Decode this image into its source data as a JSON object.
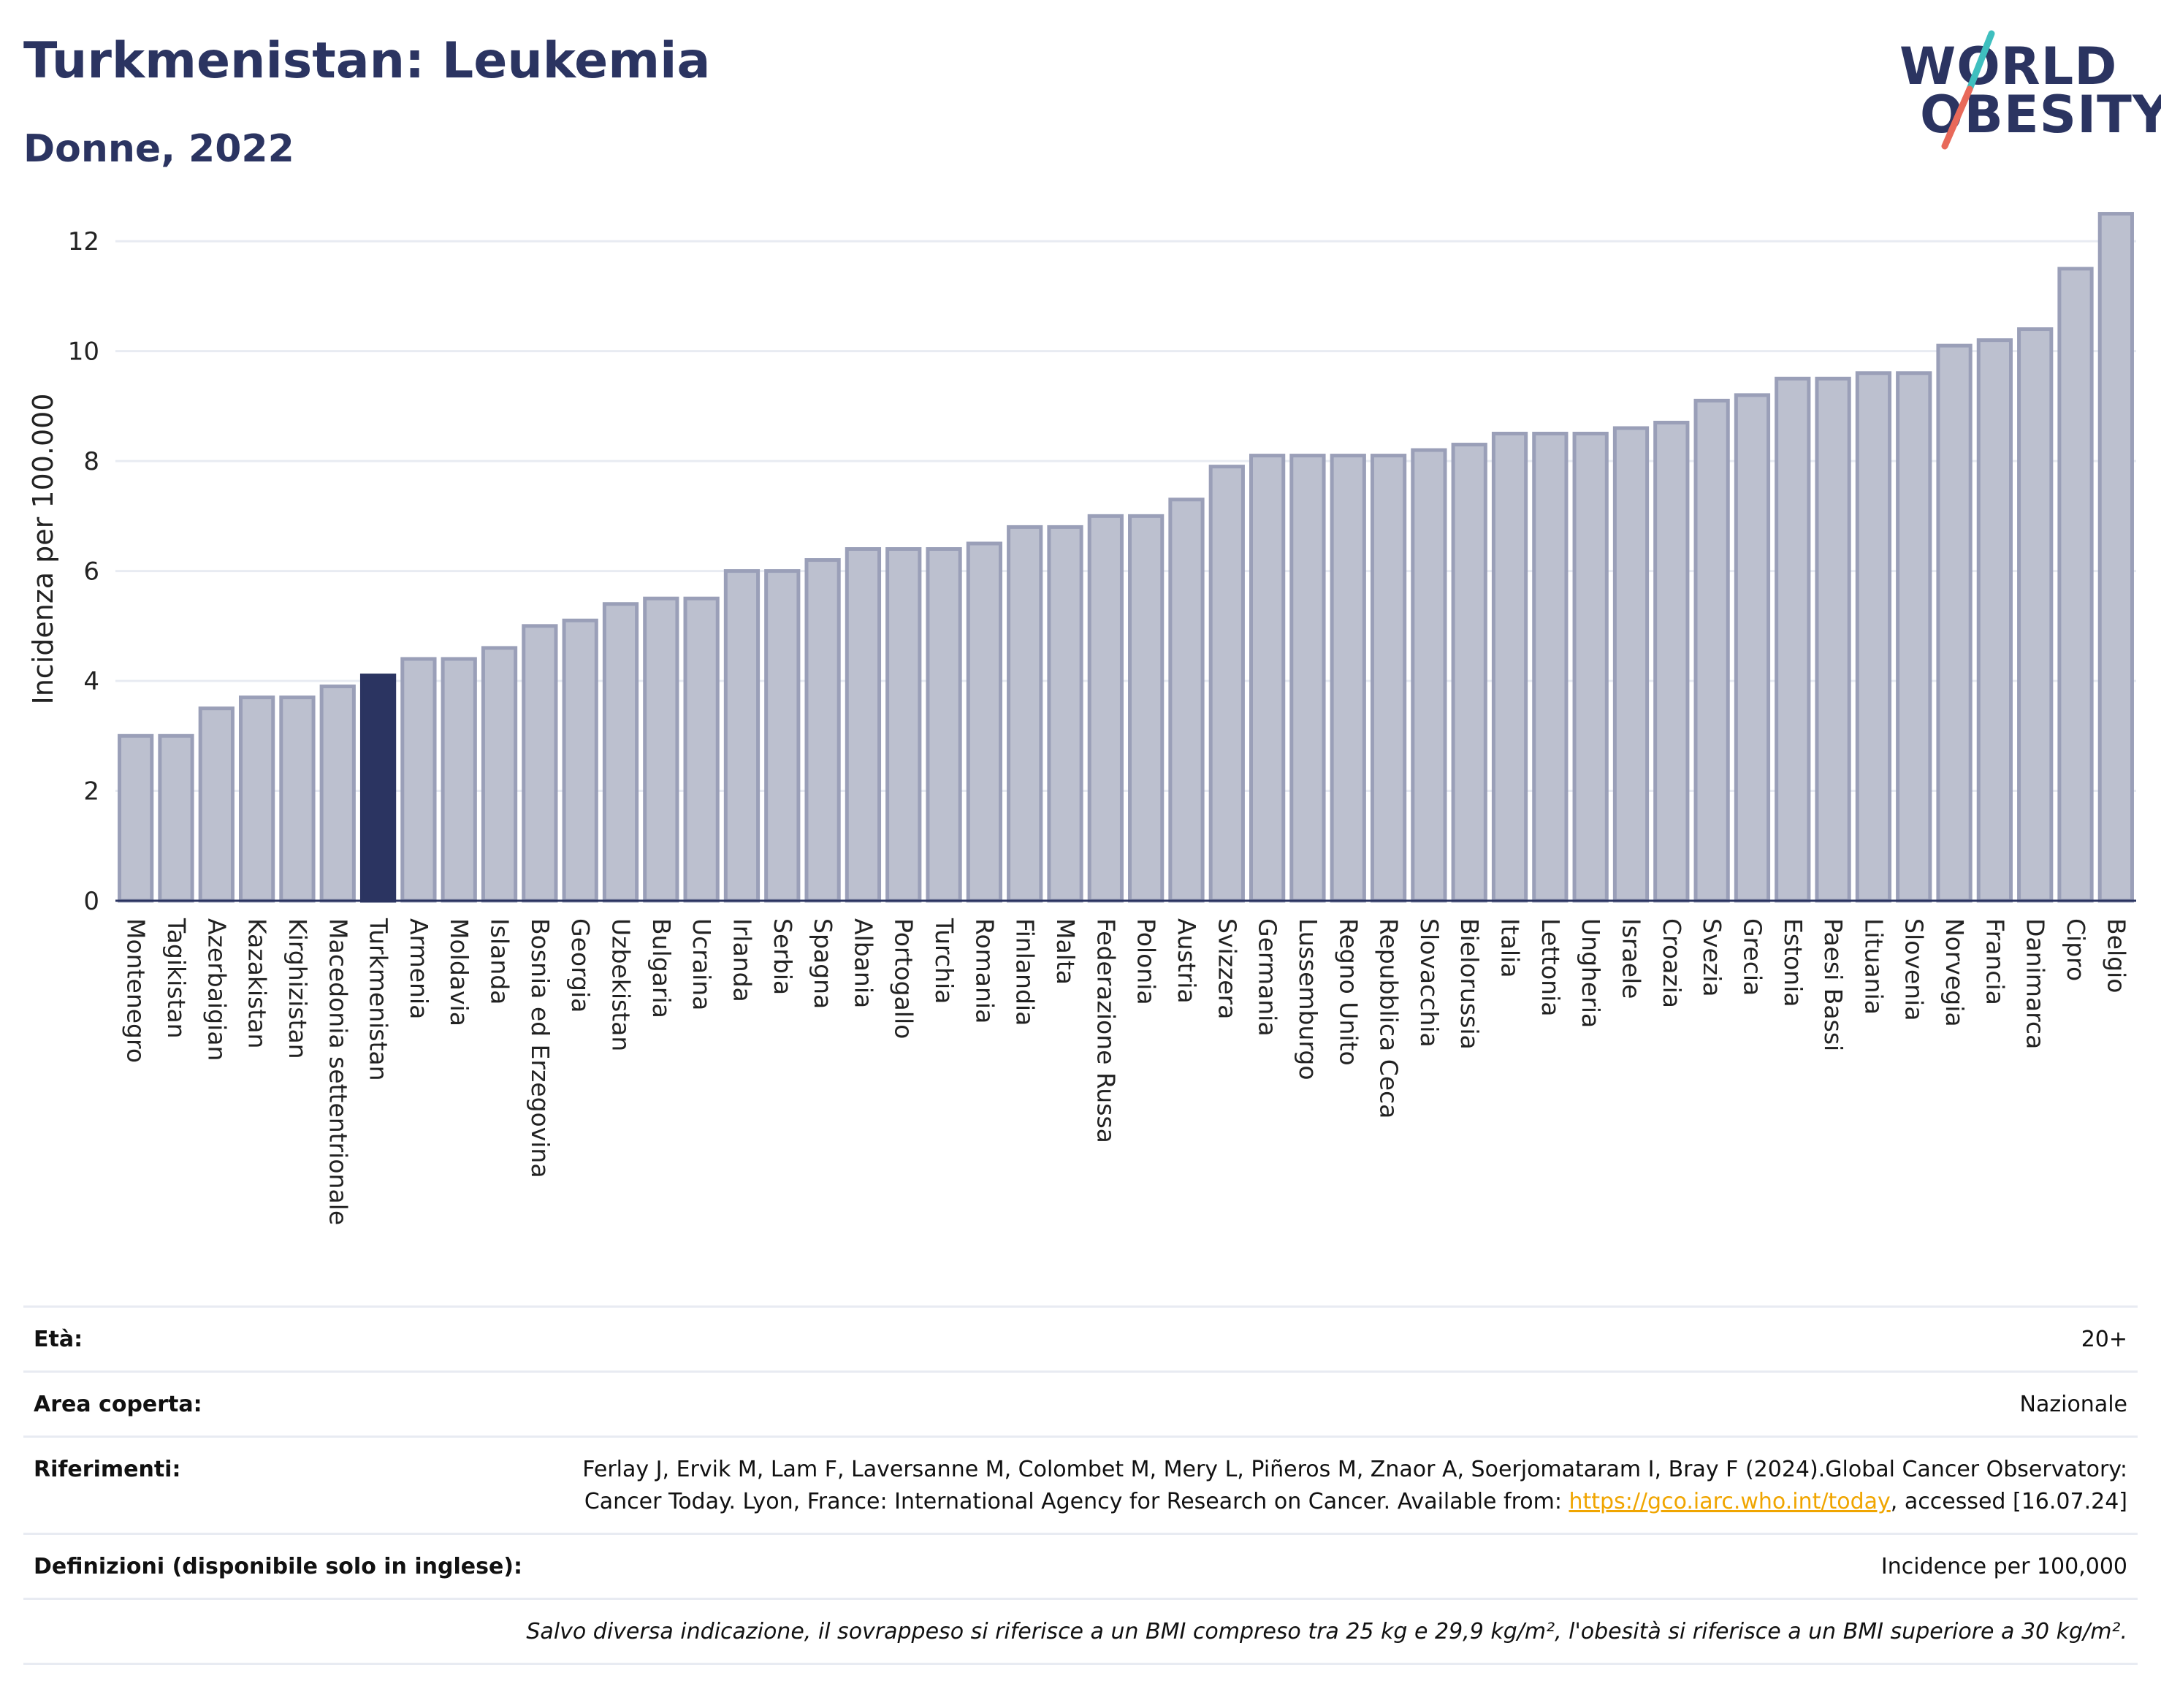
{
  "header": {
    "title": "Turkmenistan: Leukemia",
    "subtitle": "Donne, 2022"
  },
  "logo": {
    "line1": "WORLD",
    "line2": "OBESITY"
  },
  "colors": {
    "bar": "#bcc0cf",
    "bar_border": "#9a9fb8",
    "highlight": "#2b3461",
    "grid": "#e8ebf2",
    "text": "#2b3461"
  },
  "chart_data": {
    "type": "bar",
    "ylabel": "Incidenza per 100.000",
    "ylim": [
      0,
      12.8
    ],
    "yticks": [
      0,
      2,
      4,
      6,
      8,
      10,
      12
    ],
    "highlight": "Turkmenistan",
    "categories": [
      "Montenegro",
      "Tagikistan",
      "Azerbaigian",
      "Kazakistan",
      "Kirghizistan",
      "Macedonia settentrionale",
      "Turkmenistan",
      "Armenia",
      "Moldavia",
      "Islanda",
      "Bosnia ed Erzegovina",
      "Georgia",
      "Uzbekistan",
      "Bulgaria",
      "Ucraina",
      "Irlanda",
      "Serbia",
      "Spagna",
      "Albania",
      "Portogallo",
      "Turchia",
      "Romania",
      "Finlandia",
      "Malta",
      "Federazione Russa",
      "Polonia",
      "Austria",
      "Svizzera",
      "Germania",
      "Lussemburgo",
      "Regno Unito",
      "Repubblica Ceca",
      "Slovacchia",
      "Bielorussia",
      "Italia",
      "Lettonia",
      "Ungheria",
      "Israele",
      "Croazia",
      "Svezia",
      "Grecia",
      "Estonia",
      "Paesi Bassi",
      "Lituania",
      "Slovenia",
      "Norvegia",
      "Francia",
      "Danimarca",
      "Cipro",
      "Belgio"
    ],
    "values": [
      3.0,
      3.0,
      3.5,
      3.7,
      3.7,
      3.9,
      4.1,
      4.4,
      4.4,
      4.6,
      5.0,
      5.1,
      5.4,
      5.5,
      5.5,
      6.0,
      6.0,
      6.2,
      6.4,
      6.4,
      6.4,
      6.5,
      6.8,
      6.8,
      7.0,
      7.0,
      7.3,
      7.9,
      8.1,
      8.1,
      8.1,
      8.1,
      8.2,
      8.3,
      8.5,
      8.5,
      8.5,
      8.6,
      8.7,
      9.1,
      9.2,
      9.5,
      9.5,
      9.6,
      9.6,
      10.1,
      10.2,
      10.4,
      11.5,
      12.5
    ]
  },
  "info": {
    "age_label": "Età:",
    "age_value": "20+",
    "area_label": "Area coperta:",
    "area_value": "Nazionale",
    "ref_label": "Riferimenti:",
    "ref_text": "Ferlay J, Ervik M, Lam F, Laversanne M, Colombet M, Mery L, Piñeros M, Znaor A, Soerjomataram I, Bray F (2024).Global Cancer Observatory: Cancer Today. Lyon, France: International Agency for Research on Cancer. Available from:",
    "ref_link": "https://gco.iarc.who.int/today",
    "ref_tail": ", accessed [16.07.24]",
    "def_label": "Definizioni (disponibile solo in inglese):",
    "def_value": "Incidence per 100,000",
    "note": "Salvo diversa indicazione, il sovrappeso si riferisce a un BMI compreso tra 25 kg e 29,9 kg/m², l'obesità si riferisce a un BMI superiore a 30 kg/m²."
  }
}
